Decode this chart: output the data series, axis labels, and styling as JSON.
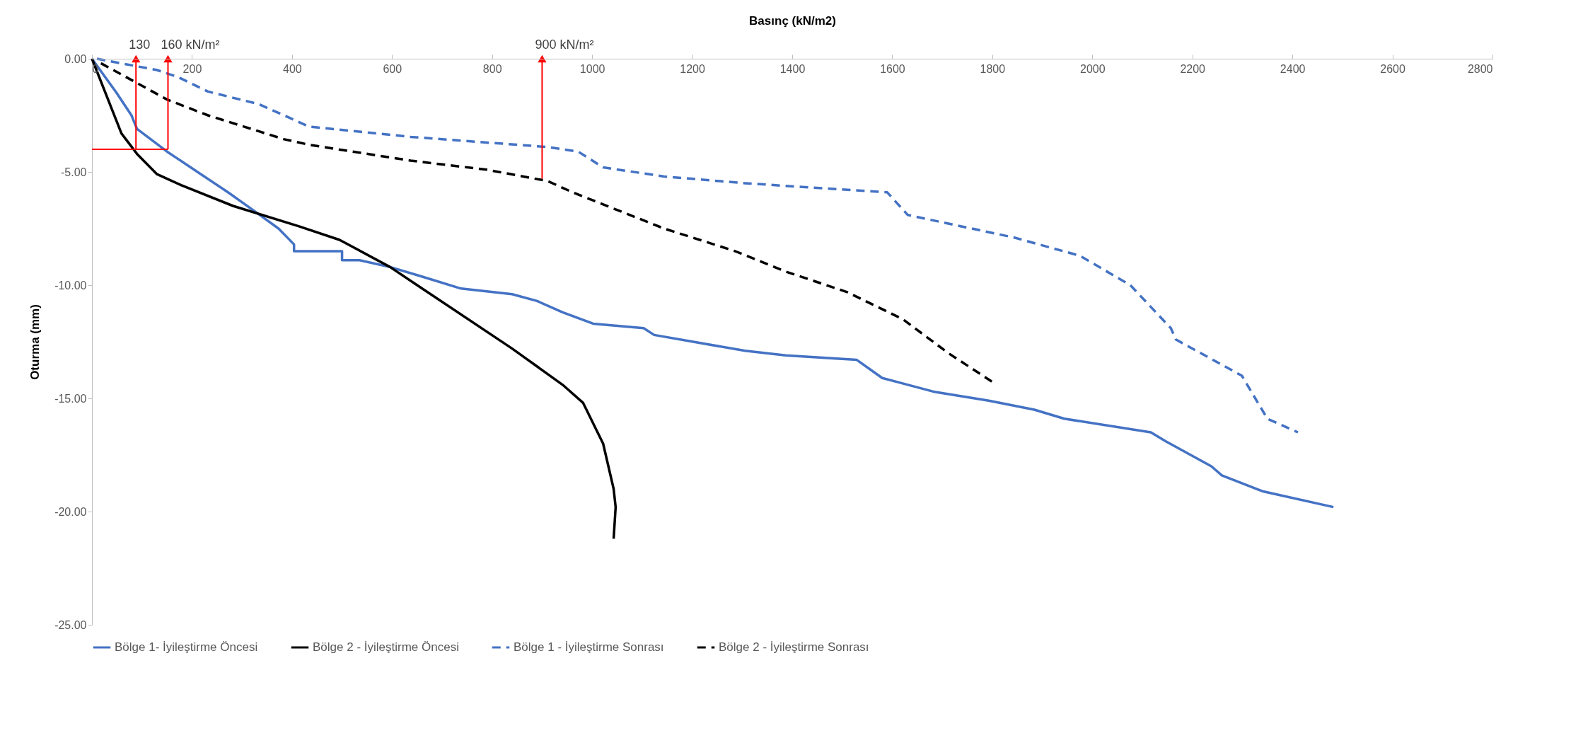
{
  "chart_data": {
    "type": "line",
    "xlabel": "Basınç (kN/m2)",
    "ylabel": "Oturma (mm)",
    "xlim": [
      0,
      2800
    ],
    "xticks": [
      0,
      200,
      400,
      600,
      800,
      1000,
      1200,
      1400,
      1600,
      1800,
      2000,
      2200,
      2400,
      2600,
      2800
    ],
    "ylim": [
      -25,
      0
    ],
    "yticks": [
      {
        "value": -25,
        "label": "-25.00"
      },
      {
        "value": -20,
        "label": "-20.00"
      },
      {
        "value": -15,
        "label": "-15.00"
      },
      {
        "value": -10,
        "label": "-10.00"
      },
      {
        "value": -5,
        "label": "-5.00"
      },
      {
        "value": 0,
        "label": "0.00"
      }
    ],
    "grid": false,
    "legend": "bottom",
    "marker": "none",
    "annotations": [
      {
        "text": "130",
        "x": 88,
        "y": -4
      },
      {
        "text": "160  kN/m²",
        "x": 152,
        "y": -4
      },
      {
        "text": "900 kN/m²",
        "x": 900,
        "y": -5.3
      }
    ],
    "series": [
      {
        "name": "Bölge 1- İyileştirme Öncesi",
        "color": "#4472c4",
        "line_style": "solid",
        "x": [
          0,
          49,
          79,
          90,
          150,
          211,
          272,
          323,
          373,
          404,
          404,
          500,
          500,
          535,
          596,
          657,
          738,
          840,
          890,
          941,
          1002,
          1103,
          1124,
          1306,
          1387,
          1529,
          1580,
          1682,
          1793,
          1884,
          1944,
          2117,
          2147,
          2238,
          2259,
          2340,
          2482
        ],
        "values": [
          0,
          -1.5,
          -2.5,
          -3.1,
          -4.1,
          -5,
          -5.9,
          -6.7,
          -7.5,
          -8.2,
          -8.5,
          -8.5,
          -8.9,
          -8.9,
          -9.2,
          -9.6,
          -10.15,
          -10.4,
          -10.7,
          -11.2,
          -11.7,
          -11.9,
          -12.2,
          -12.9,
          -13.1,
          -13.3,
          -14.1,
          -14.7,
          -15.1,
          -15.5,
          -15.9,
          -16.5,
          -16.9,
          -18,
          -18.4,
          -19.1,
          -19.8
        ]
      },
      {
        "name": "Bölge 2 - İyileştirme Öncesi",
        "color": "#000000",
        "line_style": "solid",
        "x": [
          0,
          59,
          90,
          130,
          180,
          282,
          414,
          495,
          596,
          657,
          840,
          941,
          982,
          1022,
          1043,
          1047,
          1043
        ],
        "values": [
          0,
          -3.3,
          -4.2,
          -5.1,
          -5.6,
          -6.5,
          -7.4,
          -8,
          -9.2,
          -10.1,
          -12.8,
          -14.4,
          -15.2,
          -17,
          -19,
          -19.8,
          -21.2
        ]
      },
      {
        "name": "Bölge 1 - İyileştirme Sonrası",
        "color": "#4472c4",
        "line_style": "dashed",
        "x": [
          10,
          130,
          171,
          232,
          333,
          394,
          434,
          637,
          911,
          972,
          1022,
          1144,
          1306,
          1590,
          1631,
          1844,
          1975,
          2076,
          2157,
          2167,
          2299,
          2350,
          2411
        ],
        "values": [
          0,
          -0.5,
          -0.8,
          -1.45,
          -2,
          -2.6,
          -3,
          -3.45,
          -3.9,
          -4.1,
          -4.8,
          -5.2,
          -5.5,
          -5.9,
          -6.9,
          -7.9,
          -8.7,
          -10,
          -11.9,
          -12.4,
          -14,
          -15.9,
          -16.5
        ]
      },
      {
        "name": "Bölge 2 - İyileştirme Sonrası",
        "color": "#000000",
        "line_style": "dashed",
        "x": [
          18,
          150,
          232,
          333,
          383,
          434,
          637,
          789,
          911,
          961,
          1144,
          1286,
          1387,
          1509,
          1621,
          1712,
          1802
        ],
        "values": [
          -0.2,
          -1.8,
          -2.5,
          -3.2,
          -3.55,
          -3.8,
          -4.5,
          -4.9,
          -5.4,
          -5.9,
          -7.5,
          -8.5,
          -9.4,
          -10.3,
          -11.5,
          -13,
          -14.3
        ]
      }
    ]
  }
}
